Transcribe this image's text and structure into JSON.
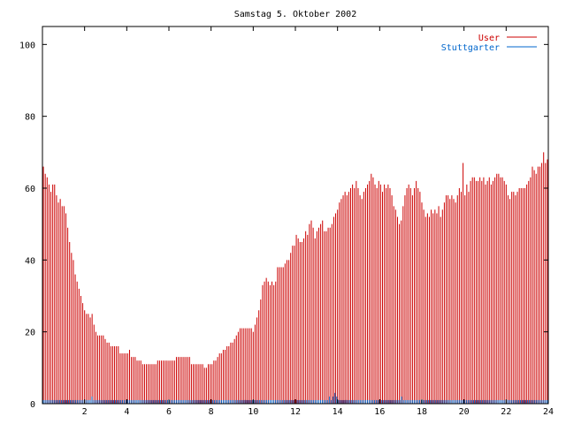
{
  "chart_data": {
    "type": "bar",
    "title": "Samstag 5. Oktober 2002",
    "xlabel": "",
    "ylabel": "",
    "xlim": [
      0,
      24
    ],
    "ylim": [
      0,
      105
    ],
    "x_ticks": [
      2,
      4,
      6,
      8,
      10,
      12,
      14,
      16,
      18,
      20,
      22,
      24
    ],
    "y_ticks": [
      0,
      20,
      40,
      60,
      80,
      100
    ],
    "legend": "top-right",
    "grid": false,
    "series": [
      {
        "name": "User",
        "color": "#cc0000",
        "values": [
          66,
          64,
          63,
          61,
          59,
          61,
          61,
          58,
          56,
          57,
          55,
          55,
          53,
          49,
          45,
          42,
          40,
          36,
          34,
          32,
          30,
          28,
          26,
          25,
          25,
          24,
          25,
          22,
          20,
          19,
          19,
          19,
          19,
          18,
          17,
          17,
          16,
          16,
          16,
          16,
          16,
          14,
          14,
          14,
          14,
          14,
          15,
          13,
          13,
          13,
          12,
          12,
          12,
          11,
          11,
          11,
          11,
          11,
          11,
          11,
          11,
          12,
          12,
          12,
          12,
          12,
          12,
          12,
          12,
          12,
          12,
          13,
          13,
          13,
          13,
          13,
          13,
          13,
          13,
          11,
          11,
          11,
          11,
          11,
          11,
          11,
          10,
          10,
          11,
          11,
          11,
          12,
          12,
          13,
          14,
          14,
          15,
          15,
          16,
          16,
          17,
          17,
          18,
          19,
          20,
          21,
          21,
          21,
          21,
          21,
          21,
          21,
          20,
          22,
          24,
          26,
          29,
          33,
          34,
          35,
          34,
          33,
          34,
          33,
          34,
          38,
          38,
          38,
          38,
          39,
          40,
          40,
          42,
          44,
          44,
          47,
          46,
          45,
          45,
          46,
          48,
          47,
          50,
          51,
          49,
          46,
          48,
          49,
          50,
          51,
          48,
          48,
          49,
          49,
          50,
          52,
          53,
          54,
          56,
          57,
          58,
          59,
          58,
          59,
          60,
          61,
          60,
          62,
          60,
          58,
          57,
          59,
          60,
          61,
          62,
          64,
          63,
          61,
          60,
          62,
          61,
          59,
          61,
          60,
          61,
          60,
          58,
          55,
          54,
          52,
          50,
          51,
          55,
          58,
          60,
          61,
          60,
          58,
          60,
          62,
          60,
          59,
          56,
          54,
          52,
          53,
          52,
          54,
          53,
          54,
          53,
          55,
          52,
          54,
          56,
          58,
          58,
          57,
          58,
          57,
          56,
          58,
          60,
          59,
          67,
          58,
          61,
          59,
          62,
          63,
          63,
          62,
          62,
          63,
          62,
          63,
          61,
          62,
          63,
          61,
          62,
          63,
          64,
          64,
          63,
          63,
          62,
          61,
          58,
          57,
          59,
          59,
          58,
          59,
          60,
          60,
          60,
          60,
          61,
          62,
          63,
          66,
          65,
          64,
          66,
          66,
          67,
          70,
          67,
          68
        ]
      },
      {
        "name": "Stuttgarter",
        "color": "#0066cc",
        "values": [
          1,
          1,
          1,
          1,
          1,
          1,
          1,
          1,
          1,
          1,
          1,
          1,
          1,
          1,
          1,
          1,
          1,
          1,
          1,
          1,
          1,
          1,
          1,
          1,
          1,
          1,
          1,
          2,
          1,
          1,
          1,
          1,
          1,
          1,
          1,
          1,
          1,
          1,
          1,
          1,
          1,
          1,
          1,
          1,
          1,
          1,
          1,
          1,
          1,
          1,
          1,
          1,
          1,
          1,
          1,
          1,
          1,
          1,
          1,
          1,
          1,
          1,
          1,
          1,
          1,
          1,
          1,
          1,
          1,
          1,
          1,
          1,
          1,
          1,
          1,
          1,
          1,
          1,
          1,
          1,
          1,
          1,
          1,
          1,
          1,
          1,
          1,
          1,
          1,
          1,
          1,
          1,
          1,
          1,
          1,
          1,
          1,
          1,
          1,
          1,
          1,
          1,
          1,
          1,
          1,
          1,
          1,
          1,
          1,
          1,
          1,
          1,
          1,
          1,
          1,
          1,
          1,
          1,
          1,
          1,
          1,
          1,
          1,
          1,
          1,
          1,
          1,
          1,
          1,
          1,
          1,
          1,
          1,
          1,
          1,
          1,
          1,
          1,
          1,
          1,
          1,
          1,
          1,
          1,
          1,
          1,
          1,
          1,
          1,
          1,
          1,
          1,
          1,
          1,
          1,
          1,
          1,
          1,
          1,
          2,
          1,
          2,
          3,
          2,
          1,
          1,
          1,
          1,
          1,
          1,
          1,
          1,
          1,
          1,
          1,
          1,
          1,
          1,
          1,
          1,
          1,
          1,
          1,
          1,
          1,
          1,
          1,
          1,
          1,
          1,
          1,
          1,
          1,
          1,
          1,
          1,
          1,
          1,
          1,
          2,
          1,
          1,
          1,
          1,
          1,
          1,
          1,
          1,
          1,
          1,
          1,
          1,
          1,
          1,
          1,
          1,
          1,
          1,
          1,
          1,
          1,
          1,
          1,
          1,
          1,
          1,
          1,
          1,
          1,
          1,
          1,
          1,
          1,
          1,
          1,
          1,
          1,
          1,
          1,
          1,
          1,
          1,
          1,
          1,
          1,
          1,
          1,
          1,
          1,
          1,
          1,
          1,
          1,
          1,
          1,
          1,
          1,
          1,
          1,
          1,
          1,
          1,
          1,
          1,
          1,
          1,
          1,
          1,
          1,
          1,
          1,
          1,
          1,
          1,
          1,
          1,
          1,
          1,
          1,
          1,
          1
        ]
      }
    ]
  }
}
